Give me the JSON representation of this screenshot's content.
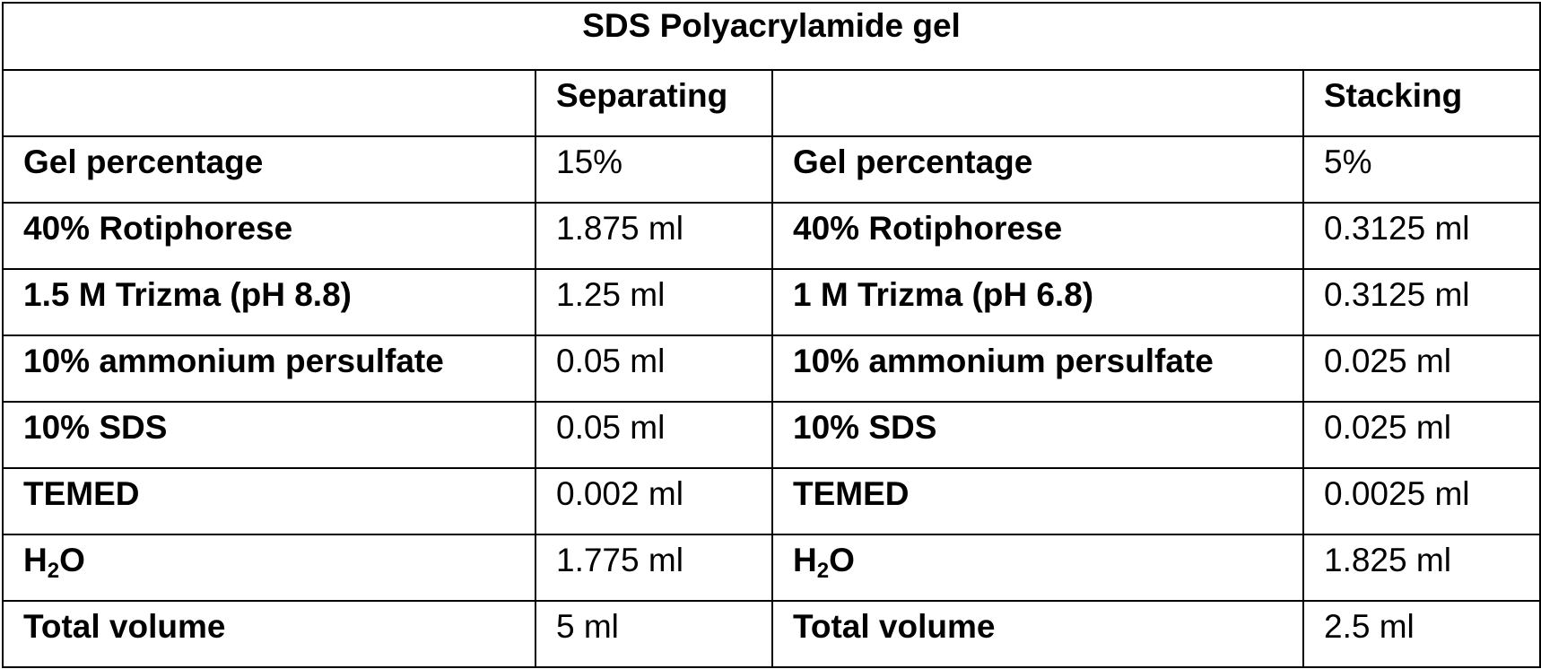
{
  "table": {
    "title": "SDS Polyacrylamide gel",
    "header": {
      "left_label": "",
      "left_value": "Separating",
      "right_label": "",
      "right_value": "Stacking"
    },
    "rows": [
      {
        "left_label": "Gel percentage",
        "left_value": "15%",
        "right_label": "Gel percentage",
        "right_value": "5%"
      },
      {
        "left_label": "40% Rotiphorese",
        "left_value": "1.875 ml",
        "right_label": "40% Rotiphorese",
        "right_value": "0.3125 ml"
      },
      {
        "left_label": "1.5 M Trizma (pH 8.8)",
        "left_value": "1.25 ml",
        "right_label": "1 M Trizma (pH 6.8)",
        "right_value": "0.3125 ml"
      },
      {
        "left_label": "10% ammonium persulfate",
        "left_value": "0.05 ml",
        "right_label": "10% ammonium persulfate",
        "right_value": "0.025 ml"
      },
      {
        "left_label": "10% SDS",
        "left_value": "0.05 ml",
        "right_label": "10% SDS",
        "right_value": "0.025 ml"
      },
      {
        "left_label": "TEMED",
        "left_value": "0.002 ml",
        "right_label": "TEMED",
        "right_value": "0.0025 ml"
      },
      {
        "left_label_parts": {
          "pre": "H",
          "sub": "2",
          "post": "O"
        },
        "left_value": "1.775 ml",
        "right_label_parts": {
          "pre": "H",
          "sub": "2",
          "post": "O"
        },
        "right_value": "1.825 ml"
      },
      {
        "left_label": "Total volume",
        "left_value": "5 ml",
        "right_label": "Total volume",
        "right_value": "2.5 ml"
      }
    ]
  }
}
